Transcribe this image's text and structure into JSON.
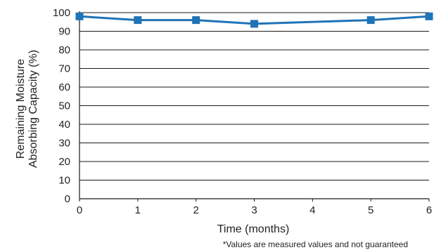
{
  "chart_data": {
    "type": "line",
    "x": [
      0,
      1,
      2,
      3,
      5,
      6
    ],
    "series": [
      {
        "values": [
          98,
          96,
          96,
          94,
          96,
          98
        ],
        "color": "#1f73b7"
      }
    ],
    "xticks": [
      "0",
      "1",
      "2",
      "3",
      "4",
      "5",
      "6"
    ],
    "yticks": [
      "0",
      "10",
      "20",
      "30",
      "40",
      "50",
      "60",
      "70",
      "80",
      "90",
      "100"
    ],
    "xlim": [
      0,
      6
    ],
    "ylim": [
      0,
      100
    ],
    "xlabel": "Time (months)",
    "ylabel_lines": [
      "Remaining Moisture",
      "Absorbing Capacity (%)"
    ],
    "grid": "horizontal",
    "legend": "none",
    "footnote": "*Values are measured values and not guaranteed"
  }
}
